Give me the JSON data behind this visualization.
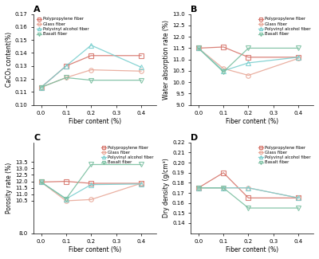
{
  "x": [
    0.0,
    0.1,
    0.2,
    0.4
  ],
  "panel_A": {
    "title": "A",
    "ylabel": "CaCO₃ content(%)",
    "xlabel": "Fiber content (%)",
    "ylim": [
      0.1,
      0.17
    ],
    "yticks": [
      0.1,
      0.11,
      0.12,
      0.13,
      0.14,
      0.15,
      0.16,
      0.17
    ],
    "legend_loc": "upper left",
    "series": {
      "Polypropylene fiber": [
        0.1135,
        0.13,
        0.138,
        0.138
      ],
      "Glass fiber": [
        0.1135,
        0.121,
        0.127,
        0.126
      ],
      "Polyvinyl alcohol fiber": [
        0.1135,
        0.13,
        0.146,
        0.129
      ],
      "Basalt fiber": [
        0.1135,
        0.121,
        0.119,
        0.119
      ]
    }
  },
  "panel_B": {
    "title": "B",
    "ylabel": "Water absorption rate (%)",
    "xlabel": "Fiber content (%)",
    "ylim": [
      9.0,
      13.0
    ],
    "yticks": [
      9.0,
      9.5,
      10.0,
      10.5,
      11.0,
      11.5,
      12.0,
      12.5,
      13.0
    ],
    "legend_loc": "upper right",
    "series": {
      "Polypropylene fiber": [
        11.5,
        11.55,
        11.1,
        11.1
      ],
      "Glass fiber": [
        11.5,
        10.6,
        10.3,
        11.05
      ],
      "Polyvinyl alcohol fiber": [
        11.5,
        10.5,
        10.85,
        11.1
      ],
      "Basalt fiber": [
        11.5,
        10.45,
        11.5,
        11.5
      ]
    }
  },
  "panel_C": {
    "title": "C",
    "ylabel": "Porosity rate (%)",
    "xlabel": "Fiber content (%)",
    "ylim": [
      8.0,
      15.0
    ],
    "yticks": [
      8.0,
      10.5,
      11.0,
      11.5,
      12.0,
      12.5,
      13.0,
      13.5
    ],
    "legend_loc": "upper right",
    "series": {
      "Polypropylene fiber": [
        11.95,
        12.0,
        11.85,
        11.85
      ],
      "Glass fiber": [
        11.95,
        10.5,
        10.6,
        11.85
      ],
      "Polyvinyl alcohol fiber": [
        11.95,
        10.65,
        11.75,
        11.8
      ],
      "Basalt fiber": [
        11.95,
        10.65,
        13.3,
        13.3
      ]
    }
  },
  "panel_D": {
    "title": "D",
    "ylabel": "Dry density (g/cm³)",
    "xlabel": "Fiber content (%)",
    "ylim": [
      0.13,
      0.22
    ],
    "yticks": [
      0.14,
      0.15,
      0.16,
      0.17,
      0.18,
      0.19,
      0.2,
      0.21,
      0.22
    ],
    "legend_loc": "upper right",
    "series": {
      "Polypropylene fiber": [
        0.175,
        0.19,
        0.165,
        0.165
      ],
      "Glass fiber": [
        0.175,
        0.175,
        0.175,
        0.165
      ],
      "Polyvinyl alcohol fiber": [
        0.175,
        0.175,
        0.175,
        0.165
      ],
      "Basalt fiber": [
        0.175,
        0.175,
        0.155,
        0.155
      ]
    }
  },
  "series_styles": {
    "Polypropylene fiber": {
      "color": "#d6756b",
      "marker": "s"
    },
    "Glass fiber": {
      "color": "#e8a898",
      "marker": "o"
    },
    "Polyvinyl alcohol fiber": {
      "color": "#7acfcf",
      "marker": "^"
    },
    "Basalt fiber": {
      "color": "#7abfa0",
      "marker": "v"
    }
  },
  "background_color": "#ffffff"
}
